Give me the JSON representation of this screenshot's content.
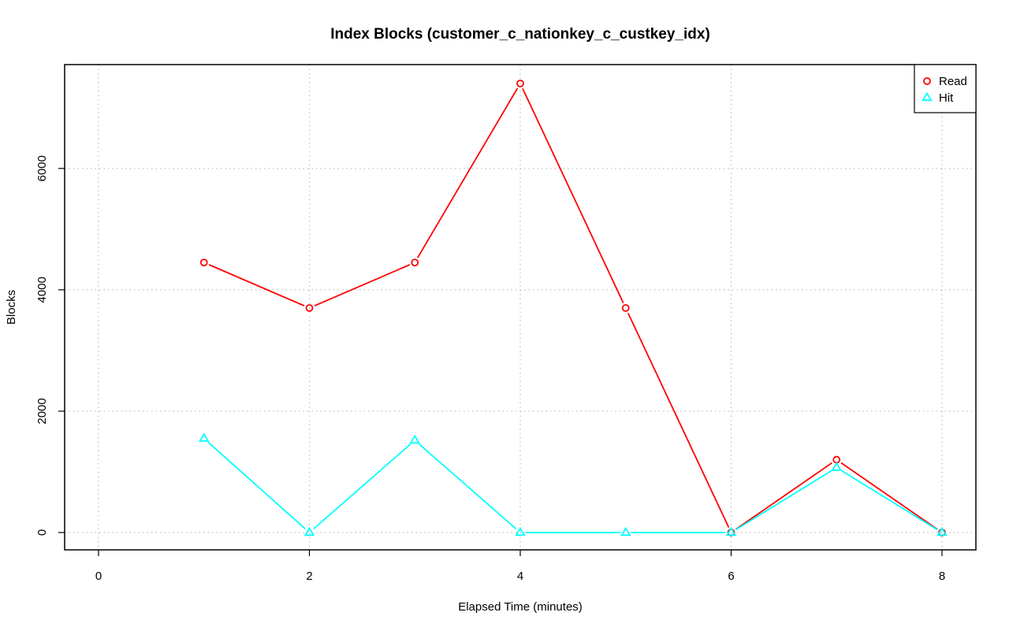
{
  "chart_data": {
    "type": "line",
    "title": "Index Blocks (customer_c_nationkey_c_custkey_idx)",
    "xlabel": "Elapsed Time (minutes)",
    "ylabel": "Blocks",
    "xlim": [
      0,
      8
    ],
    "ylim": [
      0,
      7400
    ],
    "x_ticks": [
      0,
      2,
      4,
      6,
      8
    ],
    "y_ticks": [
      0,
      2000,
      4000,
      6000
    ],
    "grid": true,
    "legend_position": "top-right",
    "x": [
      1,
      2,
      3,
      4,
      5,
      6,
      7,
      8
    ],
    "series": [
      {
        "name": "Read",
        "color": "#ff0000",
        "marker": "circle",
        "values": [
          4450,
          3700,
          4450,
          7400,
          3700,
          0,
          1200,
          0
        ]
      },
      {
        "name": "Hit",
        "color": "#00ffff",
        "marker": "triangle",
        "values": [
          1550,
          0,
          1520,
          0,
          0,
          0,
          1070,
          0
        ]
      }
    ]
  }
}
